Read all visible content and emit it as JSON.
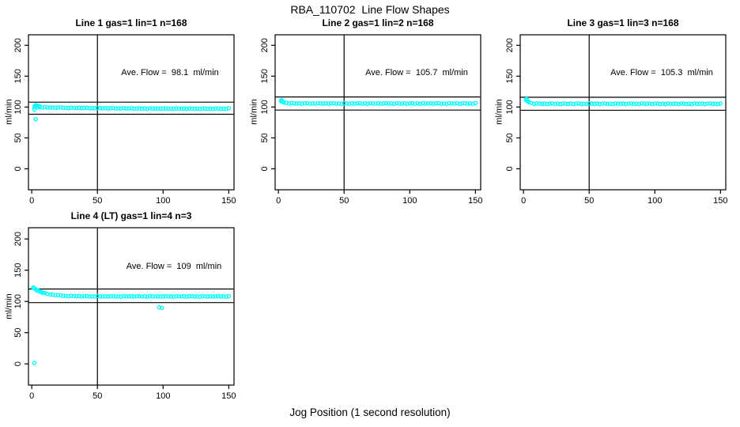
{
  "main_title": "RBA_110702  Line Flow Shapes",
  "xlabel": "Jog Position (1 second resolution)",
  "marker": {
    "shape": "open-circle",
    "color": "#00FFFF",
    "radius": 2.1,
    "stroke_width": 1.3
  },
  "line_color": "#000000",
  "chart_data": [
    {
      "type": "scatter",
      "title": "Line 1 gas=1 lin=1 n=168",
      "annotation": "Ave. Flow =  98.1  ml/min",
      "ylabel": "ml/min",
      "ave_flow": 98.1,
      "upper_line": 107.9,
      "lower_line": 88.3,
      "vline_x": 50,
      "xlim": [
        -2.5,
        154
      ],
      "ylim": [
        -34,
        217
      ],
      "x_ticks": [
        0,
        50,
        100,
        150
      ],
      "y_ticks": [
        0,
        50,
        100,
        150,
        200
      ],
      "x_start": 2,
      "x_step": 2,
      "y_values": [
        100.3,
        99.5,
        99.8,
        99.1,
        100.0,
        99.4,
        99.1,
        99.5,
        98.7,
        99.2,
        99.3,
        98.6,
        98.9,
        98.2,
        99.2,
        98.6,
        98.4,
        98.8,
        98.0,
        98.6,
        98.8,
        98.0,
        98.4,
        97.7,
        98.7,
        98.2,
        97.9,
        98.4,
        97.6,
        98.2,
        98.4,
        97.6,
        98.0,
        97.4,
        98.3,
        97.8,
        97.6,
        98.1,
        97.3,
        97.9,
        98.1,
        97.4,
        97.8,
        97.1,
        98.1,
        97.6,
        97.4,
        97.9,
        97.2,
        97.7,
        97.9,
        97.2,
        97.6,
        97.0,
        98.0,
        97.5,
        97.2,
        97.7,
        97.0,
        97.6,
        97.8,
        97.1,
        97.5,
        96.9,
        97.9,
        97.4,
        97.2,
        97.7,
        97.0,
        97.6,
        97.8,
        97.1,
        97.5,
        96.9,
        97.9
      ],
      "extra_points": [
        [
          2,
          95.8
        ],
        [
          2.5,
          102.4
        ],
        [
          3,
          103.0
        ],
        [
          3.5,
          101.9
        ],
        [
          4.5,
          102.1
        ],
        [
          6,
          101.2
        ],
        [
          3,
          80.3
        ]
      ]
    },
    {
      "type": "scatter",
      "title": "Line 2 gas=1 lin=2 n=168",
      "annotation": "Ave. Flow =  105.7  ml/min",
      "ylabel": "ml/min",
      "ave_flow": 105.7,
      "upper_line": 116.3,
      "lower_line": 95.1,
      "vline_x": 50,
      "xlim": [
        -2.5,
        154
      ],
      "ylim": [
        -34,
        217
      ],
      "x_ticks": [
        0,
        50,
        100,
        150
      ],
      "y_ticks": [
        0,
        50,
        100,
        150,
        200
      ],
      "x_start": 2,
      "x_step": 2,
      "y_values": [
        110.7,
        107.5,
        106.8,
        105.7,
        106.5,
        105.9,
        105.7,
        106.2,
        105.4,
        106.0,
        106.2,
        105.5,
        105.9,
        105.3,
        106.3,
        105.8,
        105.6,
        106.1,
        105.4,
        106.0,
        106.2,
        105.5,
        105.9,
        105.3,
        106.3,
        105.8,
        105.6,
        106.1,
        105.4,
        106.0,
        106.2,
        105.5,
        105.9,
        105.3,
        106.3,
        105.8,
        105.6,
        106.1,
        105.4,
        106.0,
        106.2,
        105.5,
        105.9,
        105.3,
        106.3,
        105.8,
        105.6,
        106.1,
        105.4,
        106.0,
        106.2,
        105.5,
        105.9,
        105.3,
        106.3,
        105.8,
        105.6,
        106.1,
        105.4,
        106.0,
        106.2,
        105.5,
        105.9,
        105.3,
        106.3,
        105.8,
        105.6,
        106.1,
        105.4,
        106.0,
        106.2,
        105.5,
        105.9,
        105.3,
        106.3
      ],
      "extra_points": [
        [
          2,
          109.6
        ],
        [
          2.5,
          111.0
        ],
        [
          3,
          108.7
        ]
      ]
    },
    {
      "type": "scatter",
      "title": "Line 3 gas=1 lin=3 n=168",
      "annotation": "Ave. Flow =  105.3  ml/min",
      "ylabel": "ml/min",
      "ave_flow": 105.3,
      "upper_line": 115.8,
      "lower_line": 94.8,
      "vline_x": 50,
      "xlim": [
        -2.5,
        154
      ],
      "ylim": [
        -34,
        217
      ],
      "x_ticks": [
        0,
        50,
        100,
        150
      ],
      "y_ticks": [
        0,
        50,
        100,
        150,
        200
      ],
      "x_start": 2,
      "x_step": 2,
      "y_values": [
        112.8,
        107.7,
        106.4,
        105.2,
        106.0,
        105.5,
        105.2,
        105.7,
        105.0,
        105.6,
        105.8,
        105.1,
        105.5,
        104.9,
        105.9,
        105.4,
        105.2,
        105.7,
        105.0,
        105.6,
        105.8,
        105.1,
        105.5,
        104.9,
        105.9,
        105.4,
        105.2,
        105.7,
        105.0,
        105.6,
        105.8,
        105.1,
        105.5,
        104.9,
        105.9,
        105.4,
        105.2,
        105.7,
        105.0,
        105.6,
        105.8,
        105.1,
        105.5,
        104.9,
        105.9,
        105.4,
        105.2,
        105.7,
        105.0,
        105.6,
        105.8,
        105.1,
        105.5,
        104.9,
        105.9,
        105.4,
        105.2,
        105.7,
        105.0,
        105.6,
        105.8,
        105.1,
        105.5,
        104.9,
        105.9,
        105.4,
        105.2,
        105.7,
        105.0,
        105.6,
        105.8,
        105.1,
        105.5,
        104.9,
        105.9
      ],
      "extra_points": [
        [
          2,
          111.5
        ],
        [
          2.5,
          112.9
        ],
        [
          3,
          109.6
        ],
        [
          4,
          108.5
        ]
      ]
    },
    {
      "type": "scatter",
      "title": "Line 4 (LT) gas=1 lin=4 n=3",
      "annotation": "Ave. Flow =  109  ml/min",
      "ylabel": "ml/min",
      "ave_flow": 109,
      "upper_line": 119.9,
      "lower_line": 98.1,
      "vline_x": 50,
      "xlim": [
        -2.5,
        154
      ],
      "ylim": [
        -34,
        218
      ],
      "x_ticks": [
        0,
        50,
        100,
        150
      ],
      "y_ticks": [
        0,
        50,
        100,
        150,
        200
      ],
      "x_start": 2,
      "x_step": 2,
      "y_values": [
        120.9,
        117.7,
        116.1,
        113.9,
        113.6,
        112.1,
        111.1,
        110.9,
        109.7,
        109.9,
        109.8,
        108.8,
        109.0,
        108.2,
        109.1,
        108.5,
        108.2,
        108.6,
        107.9,
        108.4,
        108.6,
        107.8,
        108.2,
        107.6,
        108.6,
        108.0,
        107.8,
        108.3,
        107.6,
        108.2,
        108.4,
        107.7,
        108.1,
        107.5,
        108.5,
        108.0,
        107.8,
        108.3,
        107.6,
        108.2,
        108.4,
        107.7,
        108.1,
        107.5,
        108.5,
        108.0,
        107.8,
        108.3,
        107.6,
        108.2,
        108.4,
        107.7,
        108.1,
        107.5,
        108.5,
        108.0,
        107.8,
        108.3,
        107.6,
        108.2,
        108.4,
        107.7,
        108.1,
        107.5,
        108.5,
        108.0,
        107.8,
        108.3,
        107.6,
        108.2,
        108.4,
        107.7,
        108.1,
        107.5,
        108.5
      ],
      "extra_points": [
        [
          1,
          122.3
        ],
        [
          1.5,
          121.6
        ],
        [
          3,
          119.3
        ],
        [
          5,
          117.1
        ],
        [
          7,
          115.3
        ],
        [
          9,
          113.9
        ],
        [
          2,
          1.5
        ],
        [
          97,
          90.6
        ],
        [
          99,
          89.7
        ]
      ]
    }
  ]
}
